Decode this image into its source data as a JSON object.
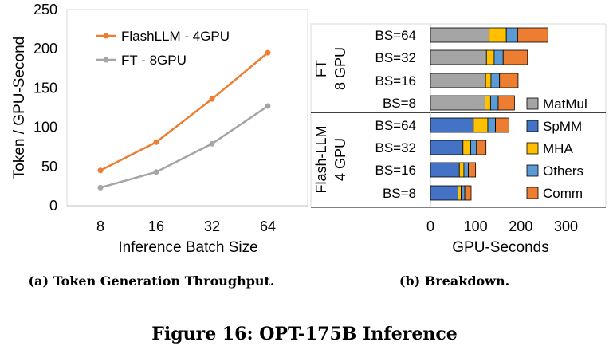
{
  "figure_caption": "Figure 16: OPT-175B Inference",
  "chart_data": [
    {
      "type": "line",
      "caption": "(a) Token Generation Throughput.",
      "x": [
        "8",
        "16",
        "32",
        "64"
      ],
      "xlabel": "Inference Batch Size",
      "ylabel": "Token / GPU-Second",
      "ylim": [
        0,
        250
      ],
      "yticks": [
        0,
        50,
        100,
        150,
        200,
        250
      ],
      "grid": false,
      "legend": "top-left",
      "series": [
        {
          "name": "FlashLLM - 4GPU",
          "color": "#ED7D31",
          "values": [
            45,
            81,
            136,
            195
          ]
        },
        {
          "name": "FT - 8GPU",
          "color": "#A5A5A5",
          "values": [
            23,
            43,
            79,
            127
          ]
        }
      ]
    },
    {
      "type": "bar",
      "orientation": "horizontal",
      "stacked": true,
      "caption": "(b) Breakdown.",
      "xlabel": "GPU-Seconds",
      "xlim": [
        0,
        300
      ],
      "xticks": [
        0,
        100,
        200,
        300
      ],
      "legend": "right",
      "groups": [
        {
          "label": "FT",
          "sublabel": "8 GPU",
          "categories": [
            "BS=64",
            "BS=32",
            "BS=16",
            "BS=8"
          ]
        },
        {
          "label": "Flash-LLM",
          "sublabel": "4 GPU",
          "categories": [
            "BS=64",
            "BS=32",
            "BS=16",
            "BS=8"
          ]
        }
      ],
      "series": [
        {
          "name": "MatMul",
          "color": "#A5A5A5",
          "values": [
            130,
            124,
            122,
            121,
            0,
            0,
            0,
            0
          ]
        },
        {
          "name": "SpMM",
          "color": "#4472C4",
          "values": [
            0,
            0,
            0,
            0,
            95,
            72,
            64,
            61
          ]
        },
        {
          "name": "MHA",
          "color": "#FFC000",
          "values": [
            38,
            17,
            12,
            12,
            32,
            17,
            10,
            7
          ]
        },
        {
          "name": "Others",
          "color": "#5B9BD5",
          "values": [
            25,
            20,
            19,
            17,
            17,
            13,
            10,
            8
          ]
        },
        {
          "name": "Comm",
          "color": "#ED7D31",
          "values": [
            67,
            54,
            41,
            36,
            30,
            21,
            16,
            14
          ]
        }
      ]
    }
  ]
}
